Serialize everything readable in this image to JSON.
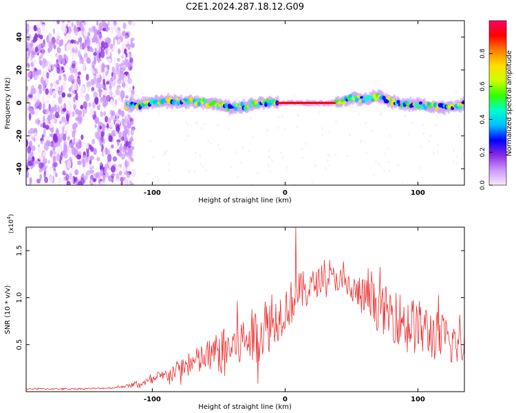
{
  "figure": {
    "title": "C2E1.2024.287.18.12.G09"
  },
  "chart_data": [
    {
      "type": "heatmap",
      "title": "C2E1.2024.287.18.12.G09",
      "xlabel": "Height of straight line (km)",
      "ylabel": "Frequency (Hz)",
      "xlim": [
        -195,
        135
      ],
      "ylim": [
        -50,
        50
      ],
      "x_ticks": [
        -100,
        0,
        100
      ],
      "y_ticks": [
        -40,
        -20,
        0,
        20,
        40
      ],
      "noise_region_x": [
        -195,
        -120
      ],
      "ridge": {
        "x": [
          -120,
          -110,
          -100,
          -90,
          -80,
          -70,
          -60,
          -50,
          -40,
          -30,
          -20,
          -10,
          0,
          10,
          20,
          30,
          40,
          50,
          60,
          70,
          80,
          90,
          100,
          110,
          120,
          130,
          135
        ],
        "y": [
          -2,
          -1,
          0,
          1,
          1,
          1,
          0,
          -1,
          -3,
          -2,
          0,
          0,
          0,
          0,
          0,
          0,
          0,
          3,
          2,
          4,
          1,
          -1,
          -1,
          -2,
          -3,
          -2,
          -1
        ]
      },
      "colorbar": {
        "label": "Normalized spectral amplitude",
        "range": [
          0.0,
          1.0
        ],
        "ticks": [
          "0.0",
          "0.2",
          "0.4",
          "0.6",
          "0.8"
        ],
        "colors": [
          "#f8e8fb",
          "#cc99ff",
          "#8a2be2",
          "#0000ff",
          "#00bfff",
          "#00ffcc",
          "#33ff00",
          "#ccff00",
          "#ffdd00",
          "#ff8000",
          "#ff0000",
          "#ff0066"
        ]
      },
      "grid": false
    },
    {
      "type": "line",
      "xlabel": "Height of straight line (km)",
      "ylabel": "SNR (10 * v/v)",
      "y_multiplier": "(x10",
      "y_multiplier_exp": "4",
      "y_multiplier_close": ")",
      "xlim": [
        -195,
        135
      ],
      "ylim": [
        0,
        1.75
      ],
      "x_ticks": [
        -100,
        0,
        100
      ],
      "y_ticks": [
        0.5,
        1.0,
        1.5
      ],
      "y_tick_labels": [
        "0.5",
        "1.0",
        "1.5"
      ],
      "line_color": "#ee2c2c",
      "series": [
        {
          "x": [
            -195,
            -180,
            -160,
            -140,
            -130,
            -120,
            -110,
            -100,
            -90,
            -80,
            -70,
            -60,
            -50,
            -40,
            -30,
            -20,
            -10,
            0,
            8,
            10,
            20,
            30,
            40,
            50,
            60,
            70,
            80,
            90,
            100,
            110,
            120,
            130,
            135
          ],
          "y_mean": [
            0.03,
            0.03,
            0.03,
            0.035,
            0.04,
            0.06,
            0.08,
            0.12,
            0.17,
            0.24,
            0.3,
            0.36,
            0.42,
            0.48,
            0.55,
            0.62,
            0.72,
            0.88,
            1.0,
            1.05,
            1.12,
            1.22,
            1.2,
            1.08,
            1.0,
            0.9,
            0.82,
            0.75,
            0.68,
            0.62,
            0.55,
            0.5,
            0.48
          ],
          "y_spread": [
            0.01,
            0.01,
            0.01,
            0.01,
            0.01,
            0.02,
            0.04,
            0.06,
            0.09,
            0.13,
            0.18,
            0.22,
            0.28,
            0.32,
            0.36,
            0.38,
            0.35,
            0.3,
            0.3,
            0.28,
            0.22,
            0.15,
            0.18,
            0.22,
            0.28,
            0.32,
            0.35,
            0.37,
            0.38,
            0.36,
            0.33,
            0.28,
            0.25
          ]
        }
      ],
      "peak": {
        "x": 8,
        "y": 1.75
      },
      "grid": false
    }
  ]
}
